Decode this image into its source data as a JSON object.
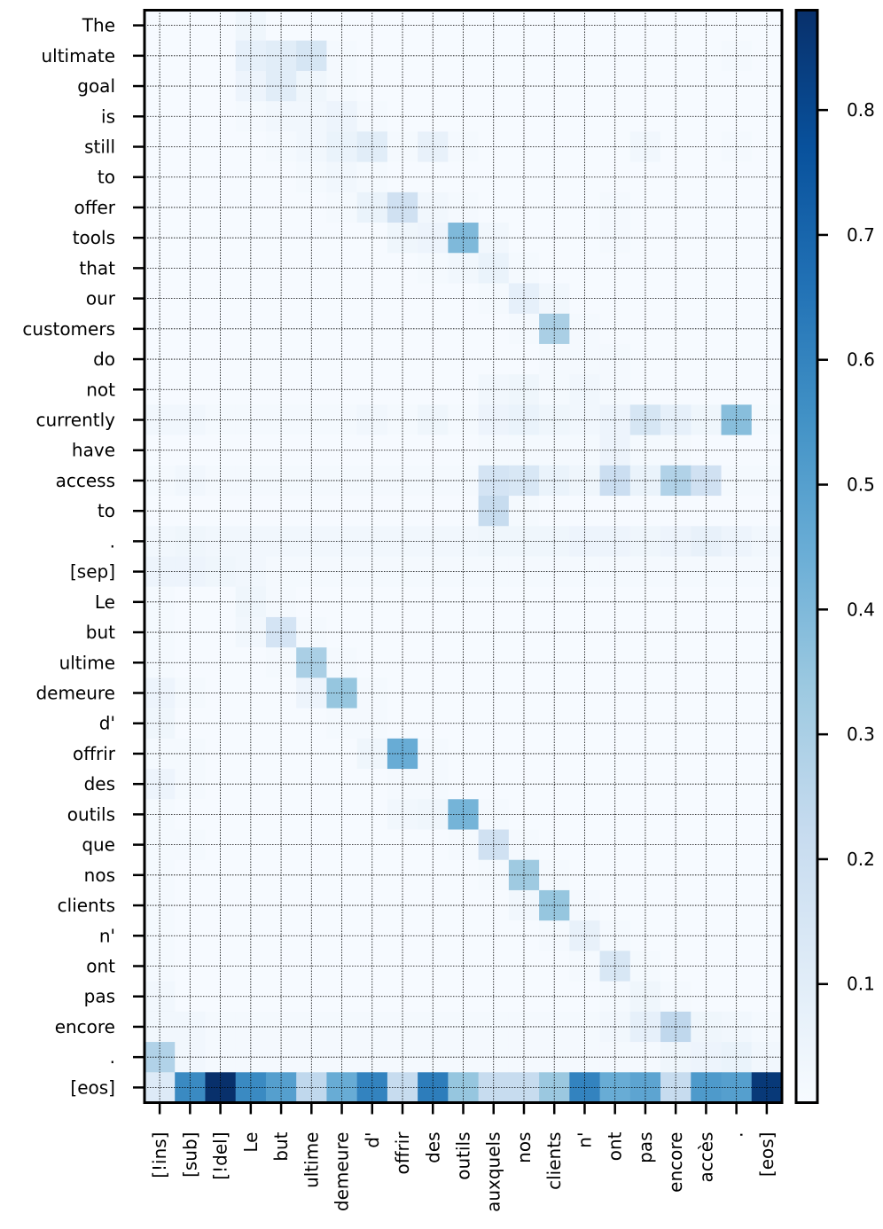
{
  "chart_data": {
    "type": "heatmap",
    "title": "",
    "xlabel": "",
    "ylabel": "",
    "x_labels": [
      "[!ins]",
      "[sub]",
      "[!del]",
      "Le",
      "but",
      "ultime",
      "demeure",
      "d'",
      "offrir",
      "des",
      "outils",
      "auxquels",
      "nos",
      "clients",
      "n'",
      "ont",
      "pas",
      "encore",
      "accès",
      ".",
      "[eos]"
    ],
    "y_labels": [
      "The",
      "ultimate",
      "goal",
      "is",
      "still",
      "to",
      "offer",
      "tools",
      "that",
      "our",
      "customers",
      "do",
      "not",
      "currently",
      "have",
      "access",
      "to",
      ".",
      "[sep]",
      "Le",
      "but",
      "ultime",
      "demeure",
      "d'",
      "offrir",
      "des",
      "outils",
      "que",
      "nos",
      "clients",
      "n'",
      "ont",
      "pas",
      "encore",
      ".",
      "[eos]"
    ],
    "colorbar": {
      "colormap": "Blues",
      "range": [
        0.005,
        0.88
      ],
      "ticks": [
        "0.1",
        "0.2",
        "0.3",
        "0.4",
        "0.5",
        "0.6",
        "0.7",
        "0.8"
      ]
    },
    "grid": true,
    "values": [
      [
        0.01,
        0.01,
        0.01,
        0.04,
        0.01,
        0.01,
        0.01,
        0.01,
        0.01,
        0.01,
        0.01,
        0.01,
        0.01,
        0.01,
        0.01,
        0.01,
        0.01,
        0.01,
        0.01,
        0.01,
        0.01
      ],
      [
        0.01,
        0.01,
        0.01,
        0.08,
        0.1,
        0.15,
        0.02,
        0.01,
        0.01,
        0.01,
        0.01,
        0.01,
        0.01,
        0.01,
        0.01,
        0.01,
        0.01,
        0.01,
        0.01,
        0.02,
        0.01
      ],
      [
        0.01,
        0.01,
        0.01,
        0.05,
        0.1,
        0.04,
        0.02,
        0.01,
        0.01,
        0.01,
        0.01,
        0.01,
        0.01,
        0.01,
        0.01,
        0.01,
        0.01,
        0.01,
        0.01,
        0.01,
        0.01
      ],
      [
        0.01,
        0.01,
        0.01,
        0.02,
        0.03,
        0.03,
        0.05,
        0.02,
        0.01,
        0.01,
        0.01,
        0.01,
        0.01,
        0.01,
        0.01,
        0.01,
        0.01,
        0.01,
        0.01,
        0.01,
        0.01
      ],
      [
        0.01,
        0.01,
        0.01,
        0.01,
        0.02,
        0.03,
        0.06,
        0.1,
        0.02,
        0.07,
        0.02,
        0.01,
        0.01,
        0.01,
        0.01,
        0.01,
        0.03,
        0.01,
        0.01,
        0.02,
        0.01
      ],
      [
        0.01,
        0.01,
        0.01,
        0.01,
        0.01,
        0.02,
        0.03,
        0.02,
        0.01,
        0.01,
        0.01,
        0.01,
        0.01,
        0.01,
        0.01,
        0.01,
        0.01,
        0.01,
        0.01,
        0.01,
        0.01
      ],
      [
        0.01,
        0.01,
        0.01,
        0.01,
        0.01,
        0.01,
        0.02,
        0.06,
        0.18,
        0.03,
        0.02,
        0.01,
        0.01,
        0.01,
        0.01,
        0.02,
        0.01,
        0.01,
        0.01,
        0.01,
        0.01
      ],
      [
        0.01,
        0.01,
        0.01,
        0.01,
        0.01,
        0.01,
        0.01,
        0.01,
        0.04,
        0.05,
        0.4,
        0.03,
        0.01,
        0.01,
        0.01,
        0.02,
        0.01,
        0.01,
        0.01,
        0.01,
        0.01
      ],
      [
        0.01,
        0.01,
        0.01,
        0.01,
        0.01,
        0.01,
        0.01,
        0.01,
        0.01,
        0.02,
        0.03,
        0.06,
        0.02,
        0.01,
        0.01,
        0.01,
        0.01,
        0.01,
        0.01,
        0.01,
        0.01
      ],
      [
        0.01,
        0.01,
        0.01,
        0.01,
        0.01,
        0.01,
        0.01,
        0.01,
        0.01,
        0.01,
        0.01,
        0.02,
        0.08,
        0.03,
        0.01,
        0.01,
        0.01,
        0.01,
        0.01,
        0.01,
        0.01
      ],
      [
        0.01,
        0.01,
        0.01,
        0.01,
        0.01,
        0.01,
        0.01,
        0.01,
        0.01,
        0.01,
        0.01,
        0.01,
        0.02,
        0.3,
        0.02,
        0.01,
        0.01,
        0.01,
        0.01,
        0.01,
        0.01
      ],
      [
        0.01,
        0.01,
        0.01,
        0.01,
        0.01,
        0.01,
        0.01,
        0.01,
        0.01,
        0.01,
        0.01,
        0.01,
        0.01,
        0.02,
        0.02,
        0.02,
        0.01,
        0.01,
        0.01,
        0.01,
        0.01
      ],
      [
        0.01,
        0.01,
        0.01,
        0.01,
        0.01,
        0.01,
        0.01,
        0.01,
        0.01,
        0.01,
        0.01,
        0.03,
        0.04,
        0.02,
        0.03,
        0.02,
        0.01,
        0.01,
        0.01,
        0.01,
        0.01
      ],
      [
        0.03,
        0.03,
        0.02,
        0.02,
        0.02,
        0.02,
        0.02,
        0.03,
        0.02,
        0.04,
        0.02,
        0.05,
        0.06,
        0.04,
        0.03,
        0.05,
        0.15,
        0.08,
        0.04,
        0.38,
        0.02
      ],
      [
        0.01,
        0.01,
        0.01,
        0.01,
        0.01,
        0.01,
        0.01,
        0.01,
        0.01,
        0.01,
        0.01,
        0.02,
        0.02,
        0.02,
        0.02,
        0.05,
        0.02,
        0.02,
        0.01,
        0.01,
        0.01
      ],
      [
        0.02,
        0.03,
        0.02,
        0.02,
        0.02,
        0.02,
        0.02,
        0.02,
        0.02,
        0.02,
        0.02,
        0.16,
        0.14,
        0.06,
        0.04,
        0.2,
        0.06,
        0.28,
        0.18,
        0.02,
        0.02
      ],
      [
        0.01,
        0.01,
        0.01,
        0.01,
        0.01,
        0.01,
        0.01,
        0.01,
        0.01,
        0.01,
        0.01,
        0.22,
        0.02,
        0.01,
        0.01,
        0.01,
        0.01,
        0.01,
        0.01,
        0.01,
        0.01
      ],
      [
        0.03,
        0.04,
        0.03,
        0.03,
        0.03,
        0.03,
        0.03,
        0.03,
        0.03,
        0.03,
        0.03,
        0.04,
        0.04,
        0.04,
        0.05,
        0.05,
        0.04,
        0.05,
        0.07,
        0.05,
        0.03
      ],
      [
        0.05,
        0.05,
        0.04,
        0.03,
        0.02,
        0.02,
        0.02,
        0.02,
        0.02,
        0.02,
        0.02,
        0.02,
        0.02,
        0.02,
        0.02,
        0.02,
        0.02,
        0.02,
        0.02,
        0.02,
        0.02
      ],
      [
        0.02,
        0.01,
        0.01,
        0.04,
        0.02,
        0.01,
        0.01,
        0.01,
        0.01,
        0.01,
        0.01,
        0.01,
        0.01,
        0.01,
        0.01,
        0.01,
        0.01,
        0.01,
        0.01,
        0.01,
        0.01
      ],
      [
        0.02,
        0.01,
        0.01,
        0.03,
        0.16,
        0.02,
        0.01,
        0.01,
        0.01,
        0.01,
        0.01,
        0.01,
        0.01,
        0.01,
        0.01,
        0.01,
        0.01,
        0.01,
        0.01,
        0.01,
        0.01
      ],
      [
        0.02,
        0.01,
        0.01,
        0.01,
        0.02,
        0.3,
        0.02,
        0.01,
        0.01,
        0.01,
        0.01,
        0.01,
        0.01,
        0.01,
        0.01,
        0.01,
        0.01,
        0.01,
        0.01,
        0.01,
        0.01
      ],
      [
        0.05,
        0.02,
        0.01,
        0.01,
        0.01,
        0.05,
        0.35,
        0.02,
        0.01,
        0.01,
        0.01,
        0.01,
        0.01,
        0.01,
        0.01,
        0.01,
        0.01,
        0.01,
        0.01,
        0.01,
        0.01
      ],
      [
        0.04,
        0.01,
        0.01,
        0.01,
        0.01,
        0.01,
        0.02,
        0.02,
        0.01,
        0.01,
        0.01,
        0.01,
        0.01,
        0.01,
        0.01,
        0.01,
        0.01,
        0.01,
        0.01,
        0.01,
        0.01
      ],
      [
        0.02,
        0.02,
        0.01,
        0.01,
        0.01,
        0.01,
        0.01,
        0.04,
        0.45,
        0.02,
        0.01,
        0.01,
        0.01,
        0.01,
        0.01,
        0.01,
        0.01,
        0.01,
        0.01,
        0.01,
        0.01
      ],
      [
        0.05,
        0.02,
        0.01,
        0.01,
        0.01,
        0.01,
        0.01,
        0.01,
        0.02,
        0.02,
        0.01,
        0.01,
        0.01,
        0.01,
        0.01,
        0.01,
        0.01,
        0.01,
        0.01,
        0.01,
        0.01
      ],
      [
        0.02,
        0.01,
        0.01,
        0.01,
        0.01,
        0.01,
        0.01,
        0.01,
        0.03,
        0.04,
        0.42,
        0.02,
        0.01,
        0.01,
        0.01,
        0.01,
        0.01,
        0.01,
        0.01,
        0.01,
        0.01
      ],
      [
        0.02,
        0.02,
        0.01,
        0.01,
        0.01,
        0.01,
        0.01,
        0.01,
        0.01,
        0.01,
        0.02,
        0.18,
        0.02,
        0.01,
        0.01,
        0.01,
        0.01,
        0.01,
        0.01,
        0.01,
        0.01
      ],
      [
        0.02,
        0.01,
        0.01,
        0.01,
        0.01,
        0.01,
        0.01,
        0.01,
        0.01,
        0.01,
        0.01,
        0.02,
        0.33,
        0.02,
        0.01,
        0.01,
        0.01,
        0.01,
        0.01,
        0.01,
        0.01
      ],
      [
        0.02,
        0.01,
        0.01,
        0.01,
        0.01,
        0.01,
        0.01,
        0.01,
        0.01,
        0.01,
        0.01,
        0.01,
        0.03,
        0.35,
        0.02,
        0.01,
        0.01,
        0.01,
        0.01,
        0.01,
        0.01
      ],
      [
        0.02,
        0.01,
        0.01,
        0.01,
        0.01,
        0.01,
        0.01,
        0.01,
        0.01,
        0.01,
        0.01,
        0.01,
        0.01,
        0.02,
        0.07,
        0.02,
        0.01,
        0.01,
        0.01,
        0.01,
        0.01
      ],
      [
        0.02,
        0.01,
        0.01,
        0.01,
        0.01,
        0.01,
        0.01,
        0.01,
        0.01,
        0.01,
        0.01,
        0.01,
        0.01,
        0.01,
        0.02,
        0.14,
        0.02,
        0.01,
        0.01,
        0.01,
        0.01
      ],
      [
        0.03,
        0.01,
        0.01,
        0.01,
        0.01,
        0.01,
        0.01,
        0.01,
        0.01,
        0.01,
        0.01,
        0.01,
        0.01,
        0.01,
        0.01,
        0.02,
        0.04,
        0.02,
        0.01,
        0.01,
        0.01
      ],
      [
        0.03,
        0.03,
        0.02,
        0.02,
        0.02,
        0.02,
        0.02,
        0.02,
        0.02,
        0.02,
        0.02,
        0.02,
        0.02,
        0.02,
        0.02,
        0.03,
        0.08,
        0.24,
        0.04,
        0.03,
        0.02
      ],
      [
        0.28,
        0.03,
        0.02,
        0.02,
        0.02,
        0.02,
        0.02,
        0.02,
        0.02,
        0.02,
        0.02,
        0.02,
        0.02,
        0.02,
        0.02,
        0.02,
        0.02,
        0.04,
        0.05,
        0.06,
        0.03
      ],
      [
        0.12,
        0.58,
        0.88,
        0.58,
        0.5,
        0.24,
        0.45,
        0.6,
        0.22,
        0.62,
        0.35,
        0.22,
        0.22,
        0.34,
        0.6,
        0.45,
        0.48,
        0.22,
        0.52,
        0.5,
        0.85
      ]
    ]
  }
}
